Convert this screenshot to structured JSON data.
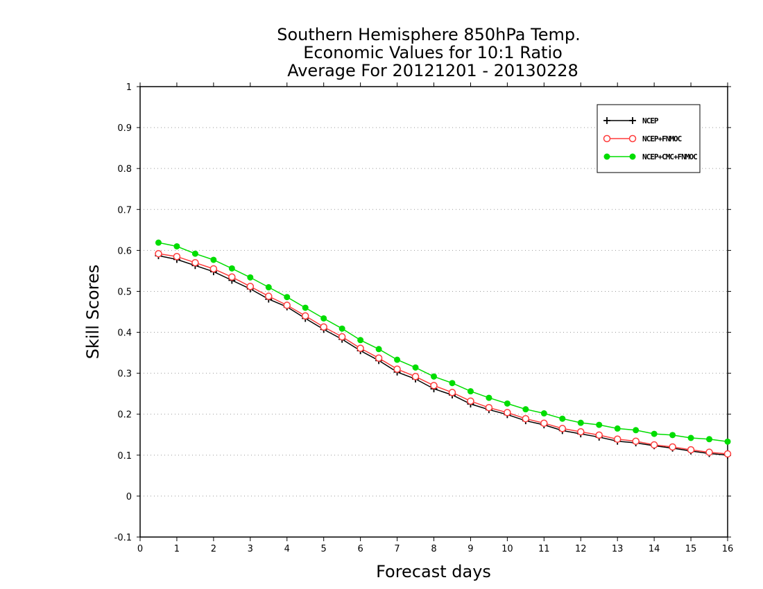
{
  "chart_data": {
    "type": "line",
    "title": [
      "Southern Hemisphere 850hPa Temp.",
      "Economic Values for 10:1 Ratio",
      "Average For 20121201 - 20130228"
    ],
    "xlabel": "Forecast days",
    "ylabel": "Skill Scores",
    "xlim": [
      0,
      16
    ],
    "ylim": [
      -0.1,
      1
    ],
    "xticks": [
      0,
      1,
      2,
      3,
      4,
      5,
      6,
      7,
      8,
      9,
      10,
      11,
      12,
      13,
      14,
      15,
      16
    ],
    "yticks": [
      -0.1,
      0,
      0.1,
      0.2,
      0.3,
      0.4,
      0.5,
      0.6,
      0.7,
      0.8,
      0.9,
      1
    ],
    "ytick_labels": [
      "-0.1",
      "0",
      "0.1",
      "0.2",
      "0.3",
      "0.4",
      "0.5",
      "0.6",
      "0.7",
      "0.8",
      "0.9",
      "1"
    ],
    "grid": "horizontal-dotted",
    "legend_position": "top-right",
    "x": [
      0.5,
      1,
      1.5,
      2,
      2.5,
      3,
      3.5,
      4,
      4.5,
      5,
      5.5,
      6,
      6.5,
      7,
      7.5,
      8,
      8.5,
      9,
      9.5,
      10,
      10.5,
      11,
      11.5,
      12,
      12.5,
      13,
      13.5,
      14,
      14.5,
      15,
      15.5,
      16
    ],
    "series": [
      {
        "name": "NCEP",
        "color": "#000000",
        "marker": "plus",
        "values": [
          0.587,
          0.578,
          0.563,
          0.548,
          0.527,
          0.506,
          0.481,
          0.462,
          0.434,
          0.407,
          0.383,
          0.355,
          0.331,
          0.303,
          0.286,
          0.262,
          0.247,
          0.225,
          0.211,
          0.199,
          0.184,
          0.174,
          0.16,
          0.152,
          0.144,
          0.134,
          0.13,
          0.123,
          0.117,
          0.11,
          0.104,
          0.1
        ]
      },
      {
        "name": "NCEP+FNMOC",
        "color": "#ff3b3b",
        "marker": "open-circle",
        "values": [
          0.592,
          0.585,
          0.57,
          0.555,
          0.535,
          0.512,
          0.488,
          0.466,
          0.44,
          0.413,
          0.389,
          0.361,
          0.337,
          0.31,
          0.292,
          0.27,
          0.253,
          0.232,
          0.216,
          0.204,
          0.189,
          0.178,
          0.165,
          0.157,
          0.149,
          0.139,
          0.134,
          0.125,
          0.12,
          0.113,
          0.107,
          0.103
        ]
      },
      {
        "name": "NCEP+CMC+FNMOC",
        "color": "#00dd00",
        "marker": "filled-circle",
        "values": [
          0.619,
          0.61,
          0.592,
          0.577,
          0.556,
          0.534,
          0.51,
          0.486,
          0.46,
          0.434,
          0.409,
          0.381,
          0.359,
          0.333,
          0.314,
          0.292,
          0.276,
          0.256,
          0.24,
          0.226,
          0.212,
          0.202,
          0.189,
          0.179,
          0.174,
          0.165,
          0.161,
          0.152,
          0.149,
          0.142,
          0.139,
          0.133
        ]
      }
    ]
  }
}
